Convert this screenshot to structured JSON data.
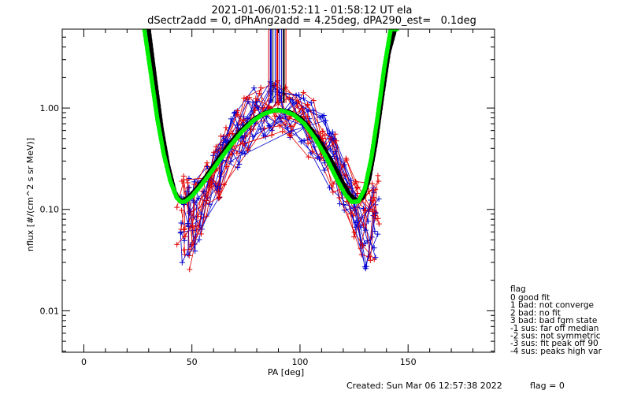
{
  "chart_data": {
    "type": "line",
    "title": "2021-01-06/01:52:11 - 01:58:12 UT ela",
    "subtitle": "dSectr2add = 0, dPhAng2add = 4.25deg, dPA290_est=   0.1deg",
    "xlabel": "PA [deg]",
    "ylabel": "nflux [#/(cm^2 s sr MeV)]",
    "xlim": [
      -10,
      190
    ],
    "ylim": [
      0.0039,
      6.0
    ],
    "yscale": "log",
    "x_ticks": [
      0,
      50,
      100,
      150
    ],
    "x_tick_labels": [
      "0",
      "50",
      "100",
      "150"
    ],
    "y_ticks": [
      0.01,
      0.1,
      1.0
    ],
    "y_tick_labels": [
      "0.01",
      "0.10",
      "1.00"
    ],
    "grid": false,
    "colors": {
      "red": "#e00000",
      "blue": "#0000d0",
      "black": "#000000",
      "green": "#00ee00"
    },
    "series_pa": [
      45,
      47,
      50,
      53,
      57,
      61,
      65,
      70,
      75,
      80,
      85,
      90,
      95,
      100,
      105,
      110,
      115,
      120,
      125,
      130,
      133,
      135
    ],
    "fit_curves": [
      {
        "color": "#000000",
        "x": [
          30,
          33,
          36,
          39,
          42,
          44,
          46,
          48,
          51,
          55,
          60,
          65,
          70,
          75,
          80,
          85,
          90,
          95,
          100,
          105,
          110,
          115,
          120,
          123,
          126,
          129,
          132,
          135,
          138,
          141,
          144
        ],
        "y": [
          6.0,
          1.9,
          0.62,
          0.27,
          0.15,
          0.125,
          0.122,
          0.13,
          0.15,
          0.19,
          0.27,
          0.38,
          0.52,
          0.67,
          0.81,
          0.92,
          0.96,
          0.92,
          0.8,
          0.62,
          0.44,
          0.29,
          0.18,
          0.14,
          0.122,
          0.13,
          0.2,
          0.45,
          1.3,
          3.5,
          6.0
        ]
      },
      {
        "color": "#00ee00",
        "x": [
          28,
          31,
          34,
          37,
          40,
          43,
          45,
          47,
          50,
          54,
          58,
          63,
          68,
          73,
          78,
          83,
          88,
          92,
          97,
          102,
          107,
          112,
          117,
          121,
          124,
          127,
          130,
          133,
          136,
          139,
          142,
          145
        ],
        "y": [
          6.0,
          2.2,
          0.78,
          0.35,
          0.19,
          0.13,
          0.118,
          0.12,
          0.135,
          0.17,
          0.22,
          0.31,
          0.43,
          0.58,
          0.74,
          0.87,
          0.95,
          0.94,
          0.86,
          0.7,
          0.5,
          0.33,
          0.2,
          0.14,
          0.118,
          0.12,
          0.16,
          0.32,
          0.85,
          2.5,
          6.0,
          6.0
        ]
      }
    ],
    "vertical_markers": {
      "x": [
        85.5,
        86.5,
        87.5,
        88.5,
        89.5,
        90.5,
        91.5,
        92.5,
        93.5
      ],
      "colors": [
        "#e00000",
        "#0000d0",
        "#000000",
        "#0000d0",
        "#e00000",
        "#0000d0",
        "#0000d0",
        "#000000",
        "#e00000"
      ],
      "ylim": [
        1.12,
        6.0
      ]
    },
    "fits_legend_title": "flag",
    "flag_legend": [
      " 0 good fit",
      " 1 bad: not converge",
      " 2 bad: no fit",
      " 3 bad: bad fgm state",
      "-1 sus: far off median",
      "-2 sus: not symmetric",
      "-3 sus: fit peak off 90",
      "-4 sus: peaks high var"
    ],
    "created": "Created: Sun Mar 06 12:57:38 2022",
    "flag_value": "flag = 0"
  }
}
